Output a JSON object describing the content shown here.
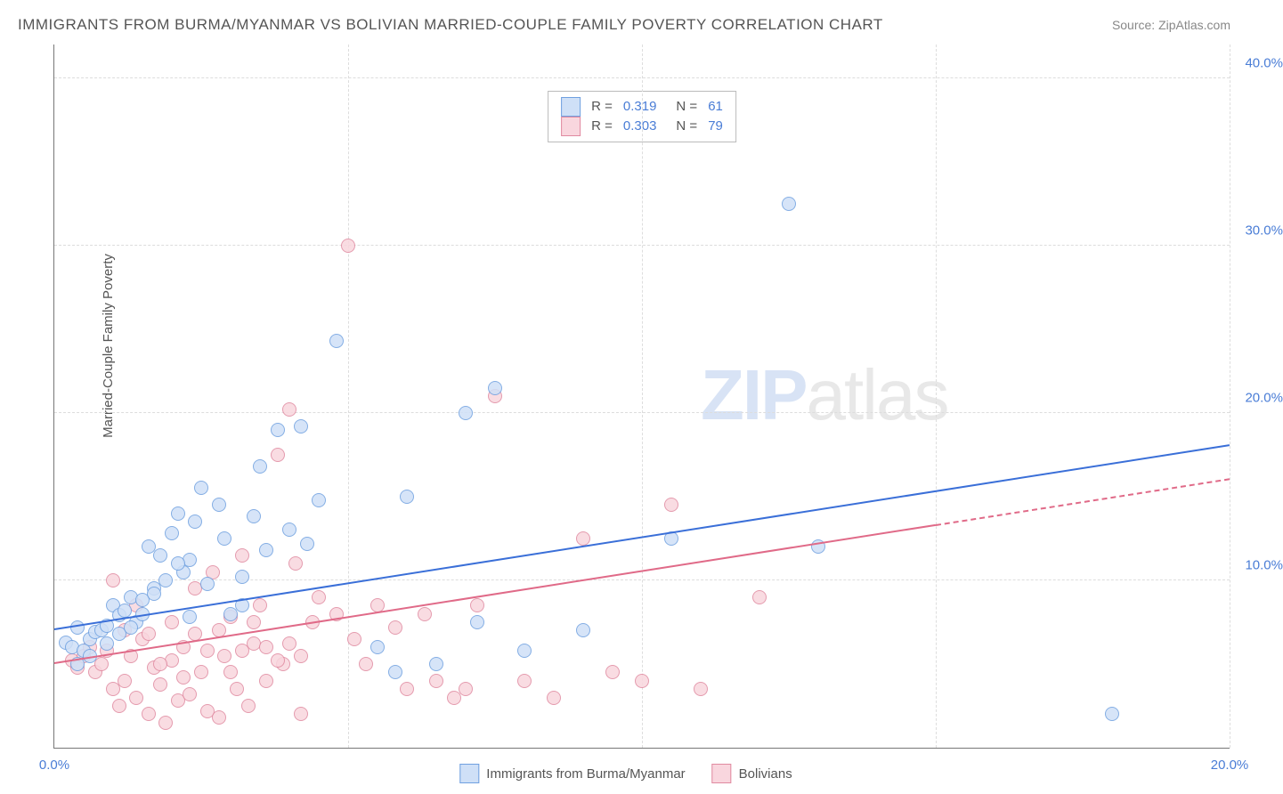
{
  "title": "IMMIGRANTS FROM BURMA/MYANMAR VS BOLIVIAN MARRIED-COUPLE FAMILY POVERTY CORRELATION CHART",
  "source_label": "Source: ZipAtlas.com",
  "y_axis_label": "Married-Couple Family Poverty",
  "watermark": "ZIPatlas",
  "chart": {
    "type": "scatter",
    "background_color": "#ffffff",
    "grid_color": "#dddddd",
    "axis_color": "#777777",
    "tick_color": "#4a7dd6",
    "xlim": [
      0,
      20
    ],
    "ylim": [
      0,
      42
    ],
    "x_ticks": [
      0,
      5,
      10,
      15,
      20
    ],
    "x_tick_labels": [
      "0.0%",
      "",
      "",
      "",
      "20.0%"
    ],
    "y_ticks": [
      10,
      20,
      30,
      40
    ],
    "y_tick_labels": [
      "10.0%",
      "20.0%",
      "30.0%",
      "40.0%"
    ],
    "point_radius": 8,
    "series": [
      {
        "name": "Immigrants from Burma/Myanmar",
        "fill": "#cfe0f7",
        "stroke": "#6fa0e0",
        "fill_opacity": 0.85,
        "r_value": "0.319",
        "n_value": "61",
        "trend": {
          "x1": 0,
          "y1": 7.0,
          "x2": 20,
          "y2": 18.0,
          "color": "#3a6fd8",
          "dash_from_x": null
        },
        "points": [
          [
            0.2,
            6.3
          ],
          [
            0.3,
            6.0
          ],
          [
            0.4,
            7.2
          ],
          [
            0.5,
            5.8
          ],
          [
            0.6,
            6.5
          ],
          [
            0.7,
            6.9
          ],
          [
            0.8,
            7.0
          ],
          [
            0.9,
            7.3
          ],
          [
            1.0,
            8.5
          ],
          [
            1.1,
            7.9
          ],
          [
            1.2,
            8.2
          ],
          [
            1.3,
            9.0
          ],
          [
            1.4,
            7.5
          ],
          [
            1.5,
            8.8
          ],
          [
            1.6,
            12.0
          ],
          [
            1.7,
            9.5
          ],
          [
            1.8,
            11.5
          ],
          [
            2.0,
            12.8
          ],
          [
            2.1,
            14.0
          ],
          [
            2.2,
            10.5
          ],
          [
            2.3,
            11.2
          ],
          [
            2.4,
            13.5
          ],
          [
            2.5,
            15.5
          ],
          [
            2.8,
            14.5
          ],
          [
            3.0,
            8.0
          ],
          [
            3.2,
            10.2
          ],
          [
            3.4,
            13.8
          ],
          [
            3.5,
            16.8
          ],
          [
            3.8,
            19.0
          ],
          [
            4.0,
            13.0
          ],
          [
            4.2,
            19.2
          ],
          [
            4.5,
            14.8
          ],
          [
            4.8,
            24.3
          ],
          [
            5.5,
            6.0
          ],
          [
            5.8,
            4.5
          ],
          [
            6.0,
            15.0
          ],
          [
            6.5,
            5.0
          ],
          [
            7.0,
            20.0
          ],
          [
            7.2,
            7.5
          ],
          [
            7.5,
            21.5
          ],
          [
            8.0,
            5.8
          ],
          [
            9.0,
            7.0
          ],
          [
            10.5,
            12.5
          ],
          [
            12.5,
            32.5
          ],
          [
            13.0,
            12.0
          ],
          [
            18.0,
            2.0
          ],
          [
            0.4,
            5.0
          ],
          [
            0.6,
            5.5
          ],
          [
            0.9,
            6.2
          ],
          [
            1.1,
            6.8
          ],
          [
            1.3,
            7.2
          ],
          [
            1.5,
            8.0
          ],
          [
            1.7,
            9.2
          ],
          [
            1.9,
            10.0
          ],
          [
            2.1,
            11.0
          ],
          [
            2.3,
            7.8
          ],
          [
            2.6,
            9.8
          ],
          [
            2.9,
            12.5
          ],
          [
            3.2,
            8.5
          ],
          [
            3.6,
            11.8
          ],
          [
            4.3,
            12.2
          ]
        ]
      },
      {
        "name": "Bolivians",
        "fill": "#f9d6de",
        "stroke": "#e08aa0",
        "fill_opacity": 0.85,
        "r_value": "0.303",
        "n_value": "79",
        "trend": {
          "x1": 0,
          "y1": 5.0,
          "x2": 20,
          "y2": 16.0,
          "color": "#e06a88",
          "dash_from_x": 15
        },
        "points": [
          [
            0.3,
            5.2
          ],
          [
            0.4,
            4.8
          ],
          [
            0.5,
            5.5
          ],
          [
            0.6,
            6.0
          ],
          [
            0.7,
            4.5
          ],
          [
            0.8,
            5.0
          ],
          [
            0.9,
            5.8
          ],
          [
            1.0,
            3.5
          ],
          [
            1.1,
            2.5
          ],
          [
            1.2,
            4.0
          ],
          [
            1.3,
            5.5
          ],
          [
            1.4,
            3.0
          ],
          [
            1.5,
            6.5
          ],
          [
            1.6,
            2.0
          ],
          [
            1.7,
            4.8
          ],
          [
            1.8,
            3.8
          ],
          [
            1.9,
            1.5
          ],
          [
            2.0,
            5.2
          ],
          [
            2.1,
            2.8
          ],
          [
            2.2,
            6.0
          ],
          [
            2.3,
            3.2
          ],
          [
            2.4,
            9.5
          ],
          [
            2.5,
            4.5
          ],
          [
            2.6,
            2.2
          ],
          [
            2.7,
            10.5
          ],
          [
            2.8,
            1.8
          ],
          [
            2.9,
            5.5
          ],
          [
            3.0,
            7.8
          ],
          [
            3.1,
            3.5
          ],
          [
            3.2,
            11.5
          ],
          [
            3.3,
            2.5
          ],
          [
            3.4,
            6.2
          ],
          [
            3.5,
            8.5
          ],
          [
            3.6,
            4.0
          ],
          [
            3.8,
            17.5
          ],
          [
            3.9,
            5.0
          ],
          [
            4.0,
            20.2
          ],
          [
            4.1,
            11.0
          ],
          [
            4.2,
            2.0
          ],
          [
            4.4,
            7.5
          ],
          [
            4.5,
            9.0
          ],
          [
            4.8,
            8.0
          ],
          [
            5.0,
            30.0
          ],
          [
            5.1,
            6.5
          ],
          [
            5.3,
            5.0
          ],
          [
            5.5,
            8.5
          ],
          [
            5.8,
            7.2
          ],
          [
            6.0,
            3.5
          ],
          [
            6.3,
            8.0
          ],
          [
            6.5,
            4.0
          ],
          [
            6.8,
            3.0
          ],
          [
            7.0,
            3.5
          ],
          [
            7.2,
            8.5
          ],
          [
            7.5,
            21.0
          ],
          [
            8.0,
            4.0
          ],
          [
            8.5,
            3.0
          ],
          [
            9.0,
            12.5
          ],
          [
            9.5,
            4.5
          ],
          [
            10.0,
            4.0
          ],
          [
            10.5,
            14.5
          ],
          [
            11.0,
            3.5
          ],
          [
            12.0,
            9.0
          ],
          [
            1.0,
            10.0
          ],
          [
            1.2,
            7.0
          ],
          [
            1.4,
            8.5
          ],
          [
            1.6,
            6.8
          ],
          [
            1.8,
            5.0
          ],
          [
            2.0,
            7.5
          ],
          [
            2.2,
            4.2
          ],
          [
            2.4,
            6.8
          ],
          [
            2.6,
            5.8
          ],
          [
            2.8,
            7.0
          ],
          [
            3.0,
            4.5
          ],
          [
            3.2,
            5.8
          ],
          [
            3.4,
            7.5
          ],
          [
            3.6,
            6.0
          ],
          [
            3.8,
            5.2
          ],
          [
            4.0,
            6.2
          ],
          [
            4.2,
            5.5
          ]
        ]
      }
    ]
  },
  "bottom_legend": [
    {
      "label": "Immigrants from Burma/Myanmar",
      "fill": "#cfe0f7",
      "stroke": "#6fa0e0"
    },
    {
      "label": "Bolivians",
      "fill": "#f9d6de",
      "stroke": "#e08aa0"
    }
  ]
}
